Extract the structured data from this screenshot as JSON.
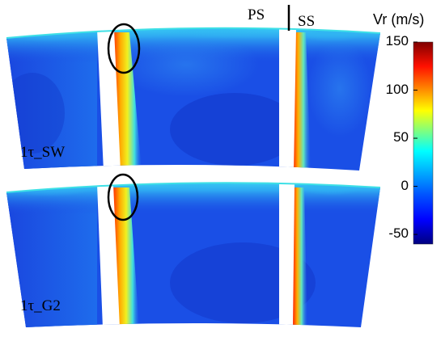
{
  "panels": [
    {
      "label": "1τ_SW"
    },
    {
      "label": "1τ_G2"
    }
  ],
  "side_labels": {
    "pressure_side": "PS",
    "suction_side": "SS"
  },
  "colorbar": {
    "title": "Vr (m/s)",
    "ticks": [
      "150",
      "100",
      "50",
      "0",
      "-50"
    ],
    "min": -60,
    "max": 150,
    "colormap": "jet",
    "colors": [
      "#00007f",
      "#0000ff",
      "#007fff",
      "#00ffff",
      "#7fff7f",
      "#ffff00",
      "#ff7f00",
      "#ff0000",
      "#7f0000"
    ]
  },
  "colors": {
    "background_field": "#1a4fe6",
    "deep_field": "#1238c8",
    "low_region": "#2a8cf0",
    "cyan_region": "#40d8f0",
    "blade_gap": "#ffffff",
    "annotation_ellipse": "#000000"
  }
}
